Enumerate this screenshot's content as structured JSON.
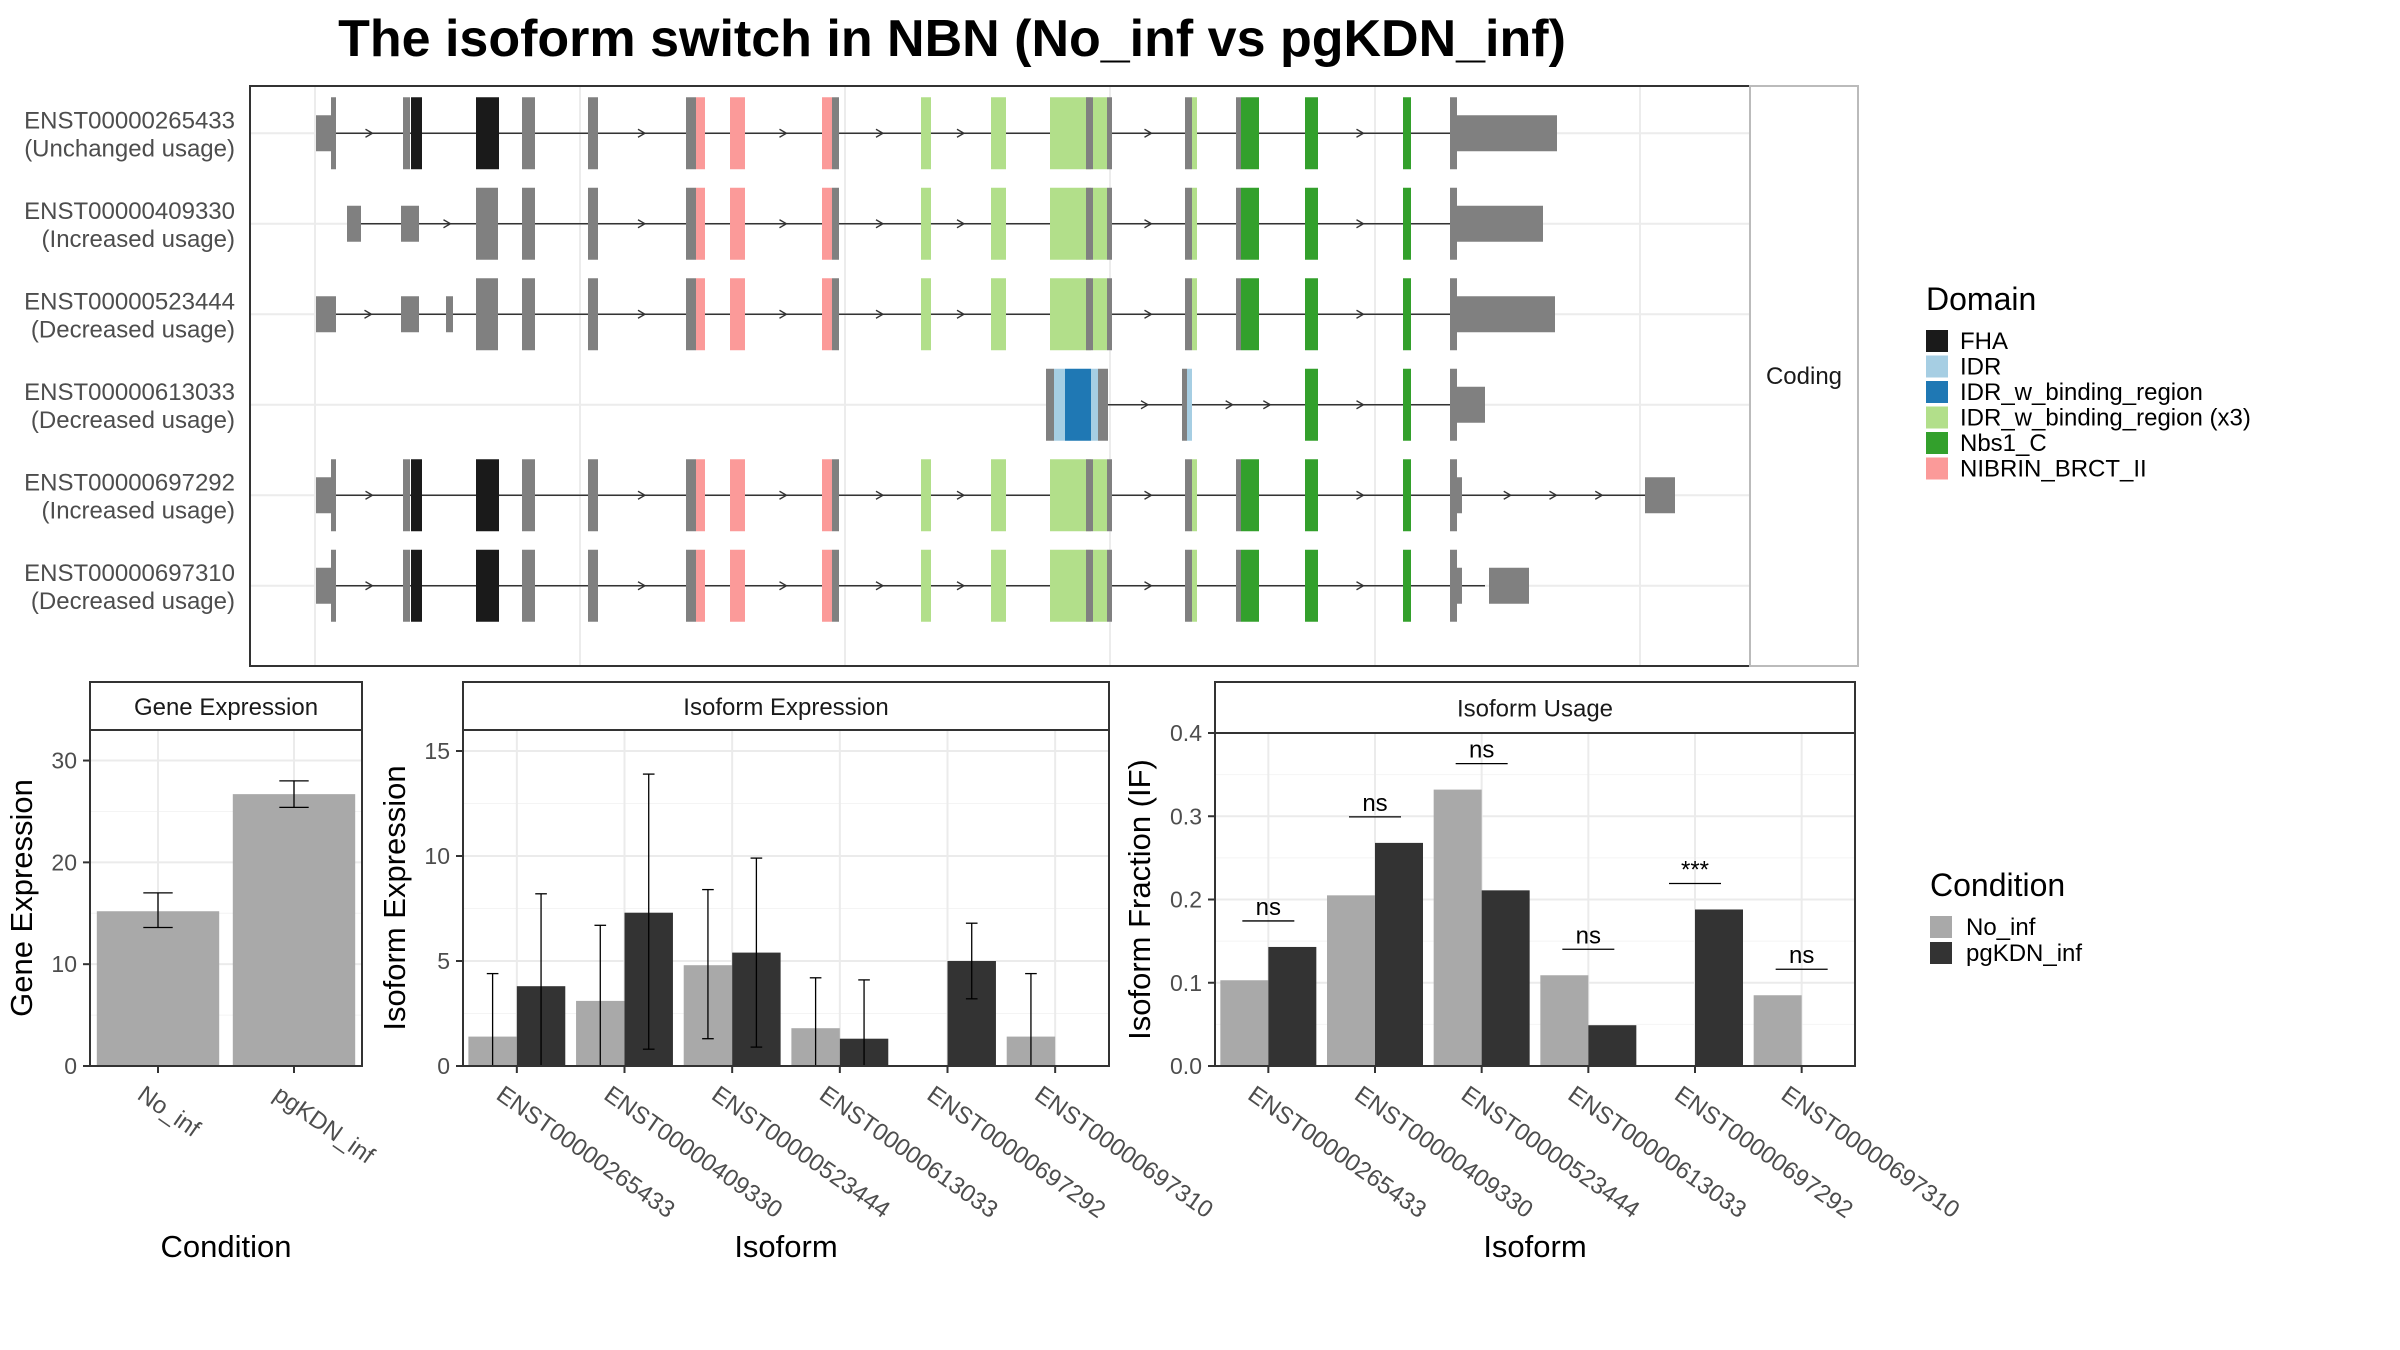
{
  "title": "The isoform switch in NBN (No_inf vs pgKDN_inf)",
  "structure": {
    "strip_label": "Coding",
    "isoforms": [
      {
        "id": "ENST00000265433",
        "status": "(Unchanged usage)"
      },
      {
        "id": "ENST00000409330",
        "status": "(Increased usage)"
      },
      {
        "id": "ENST00000523444",
        "status": "(Decreased usage)"
      },
      {
        "id": "ENST00000613033",
        "status": "(Decreased usage)"
      },
      {
        "id": "ENST00000697292",
        "status": "(Increased usage)"
      },
      {
        "id": "ENST00000697310",
        "status": "(Decreased usage)"
      }
    ],
    "domain_legend": {
      "title": "Domain",
      "items": [
        {
          "label": "FHA",
          "color": "#1a1a1a"
        },
        {
          "label": "IDR",
          "color": "#a6cee3"
        },
        {
          "label": "IDR_w_binding_region",
          "color": "#1f78b4"
        },
        {
          "label": "IDR_w_binding_region (x3)",
          "color": "#b2df8a"
        },
        {
          "label": "Nbs1_C",
          "color": "#33a02c"
        },
        {
          "label": "NIBRIN_BRCT_II",
          "color": "#fb9a99"
        }
      ]
    },
    "colors": {
      "exon": "#808080",
      "intron": "#333333"
    }
  },
  "condition_legend": {
    "title": "Condition",
    "items": [
      {
        "label": "No_inf",
        "color": "#a9a9a9"
      },
      {
        "label": "pgKDN_inf",
        "color": "#333333"
      }
    ]
  },
  "chart_data": [
    {
      "type": "bar",
      "title": "Gene Expression",
      "xlabel": "Condition",
      "ylabel": "Gene Expression",
      "ylim": [
        0,
        33
      ],
      "yticks": [
        0,
        10,
        20,
        30
      ],
      "categories": [
        "No_inf",
        "pgKDN_inf"
      ],
      "values": [
        15.2,
        26.7
      ],
      "errors": [
        [
          13.6,
          17.0
        ],
        [
          25.4,
          28.0
        ]
      ]
    },
    {
      "type": "bar",
      "title": "Isoform Expression",
      "xlabel": "Isoform",
      "ylabel": "Isoform Expression",
      "ylim": [
        0,
        16
      ],
      "yticks": [
        0,
        5,
        10,
        15
      ],
      "categories": [
        "ENST00000265433",
        "ENST00000409330",
        "ENST00000523444",
        "ENST00000613033",
        "ENST00000697292",
        "ENST00000697310"
      ],
      "series": [
        {
          "name": "No_inf",
          "values": [
            1.4,
            3.1,
            4.8,
            1.8,
            0.0,
            1.4
          ],
          "errors": [
            [
              0,
              4.4
            ],
            [
              0,
              6.7
            ],
            [
              1.3,
              8.4
            ],
            [
              0,
              4.2
            ],
            [
              0,
              0
            ],
            [
              0,
              4.4
            ]
          ]
        },
        {
          "name": "pgKDN_inf",
          "values": [
            3.8,
            7.3,
            5.4,
            1.3,
            5.0,
            0.0
          ],
          "errors": [
            [
              0,
              8.2
            ],
            [
              0.8,
              13.9
            ],
            [
              0.9,
              9.9
            ],
            [
              0,
              4.1
            ],
            [
              3.2,
              6.8
            ],
            [
              0,
              0
            ]
          ]
        }
      ]
    },
    {
      "type": "bar",
      "title": "Isoform Usage",
      "xlabel": "Isoform",
      "ylabel": "Isoform Fraction (IF)",
      "ylim": [
        0,
        0.4
      ],
      "yticks": [
        "0.0",
        "0.1",
        "0.2",
        "0.3",
        "0.4"
      ],
      "categories": [
        "ENST00000265433",
        "ENST00000409330",
        "ENST00000523444",
        "ENST00000613033",
        "ENST00000697292",
        "ENST00000697310"
      ],
      "series": [
        {
          "name": "No_inf",
          "values": [
            0.103,
            0.205,
            0.332,
            0.109,
            0.0,
            0.085
          ]
        },
        {
          "name": "pgKDN_inf",
          "values": [
            0.143,
            0.268,
            0.211,
            0.049,
            0.188,
            0.0
          ]
        }
      ],
      "significance": [
        "ns",
        "ns",
        "ns",
        "ns",
        "***",
        "ns"
      ]
    }
  ]
}
